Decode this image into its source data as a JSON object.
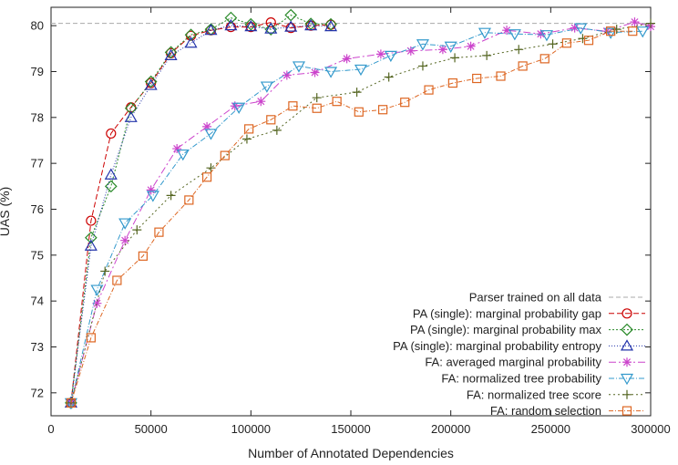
{
  "chart_data": {
    "type": "line",
    "title": "",
    "xlabel": "Number of Annotated Dependencies",
    "ylabel": "UAS (%)",
    "xlim": [
      0,
      300000
    ],
    "ylim": [
      71.5,
      80.4
    ],
    "xticks": [
      0,
      50000,
      100000,
      150000,
      200000,
      250000,
      300000
    ],
    "xtick_labels": [
      "0",
      "50000",
      "100000",
      "150000",
      "200000",
      "250000",
      "300000"
    ],
    "yticks": [
      72,
      73,
      74,
      75,
      76,
      77,
      78,
      79,
      80
    ],
    "ytick_labels": [
      "72",
      "73",
      "74",
      "75",
      "76",
      "77",
      "78",
      "79",
      "80"
    ],
    "grid": false,
    "legend_position": "bottom-right",
    "reference_line": {
      "name": "Parser trained on all data",
      "y": 80.05,
      "color": "#aaaaaa"
    },
    "series": [
      {
        "name": "PA (single): marginal probability gap",
        "color": "#cc0000",
        "marker": "circle",
        "dash": "6,3",
        "x": [
          10000,
          20000,
          30000,
          40000,
          50000,
          60000,
          70000,
          80000,
          90000,
          100000,
          110000,
          120000,
          130000,
          140000
        ],
        "y": [
          71.78,
          75.75,
          77.65,
          78.22,
          78.75,
          79.4,
          79.78,
          79.9,
          79.97,
          79.97,
          80.07,
          79.95,
          80.0,
          80.02
        ]
      },
      {
        "name": "PA (single): marginal probability max",
        "color": "#2a8a2a",
        "marker": "diamond",
        "dash": "2,2",
        "x": [
          10000,
          20000,
          30000,
          40000,
          50000,
          60000,
          70000,
          80000,
          90000,
          100000,
          110000,
          120000,
          130000,
          140000
        ],
        "y": [
          71.78,
          75.38,
          76.5,
          78.2,
          78.78,
          79.42,
          79.8,
          79.92,
          80.17,
          80.03,
          79.92,
          80.23,
          80.04,
          80.03
        ]
      },
      {
        "name": "PA (single): marginal probability entropy",
        "color": "#2233aa",
        "marker": "triangle",
        "dash": "1,2",
        "x": [
          10000,
          20000,
          30000,
          40000,
          50000,
          60000,
          70000,
          80000,
          90000,
          100000,
          110000,
          120000,
          130000,
          140000
        ],
        "y": [
          71.78,
          75.2,
          76.75,
          78.0,
          78.7,
          79.35,
          79.62,
          79.9,
          80.0,
          79.98,
          79.93,
          79.97,
          80.0,
          79.98
        ]
      },
      {
        "name": "FA: averaged marginal probability",
        "color": "#cc44cc",
        "marker": "star",
        "dash": "8,3,2,3",
        "x": [
          10000,
          23000,
          37000,
          50000,
          63000,
          78000,
          92000,
          105000,
          118000,
          132000,
          148000,
          165000,
          180000,
          196000,
          210000,
          228000,
          245000,
          262000,
          278000,
          292000,
          300000
        ],
        "y": [
          71.78,
          73.95,
          75.32,
          76.42,
          77.32,
          77.8,
          78.25,
          78.35,
          78.92,
          78.98,
          79.28,
          79.38,
          79.45,
          79.48,
          79.55,
          79.9,
          79.82,
          79.95,
          79.88,
          80.08,
          79.98
        ]
      },
      {
        "name": "FA: normalized tree probability",
        "color": "#3399cc",
        "marker": "tri_down",
        "dash": "6,2,1,2",
        "x": [
          10000,
          23000,
          37000,
          51000,
          66000,
          80000,
          94000,
          108000,
          124000,
          140000,
          155000,
          170000,
          186000,
          200000,
          217000,
          232000,
          248000,
          265000,
          280000,
          296000
        ],
        "y": [
          71.78,
          74.25,
          75.7,
          76.3,
          77.2,
          77.65,
          78.22,
          78.68,
          79.12,
          79.0,
          79.05,
          79.35,
          79.6,
          79.55,
          79.85,
          79.82,
          79.8,
          79.95,
          79.85,
          79.88
        ]
      },
      {
        "name": "FA: normalized tree score",
        "color": "#556622",
        "marker": "plus",
        "dash": "2,3",
        "x": [
          10000,
          27000,
          43000,
          60000,
          80000,
          98000,
          113000,
          133000,
          153000,
          169000,
          186000,
          202000,
          218000,
          234000,
          251000,
          266000,
          283000,
          300000
        ],
        "y": [
          71.78,
          74.65,
          75.55,
          76.3,
          76.9,
          77.53,
          77.72,
          78.43,
          78.55,
          78.88,
          79.12,
          79.3,
          79.35,
          79.48,
          79.6,
          79.72,
          79.92,
          80.05
        ]
      },
      {
        "name": "FA: random selection",
        "color": "#dd6622",
        "marker": "square",
        "dash": "5,2,1,2",
        "x": [
          10000,
          20000,
          33000,
          46000,
          54000,
          69000,
          78000,
          87000,
          99000,
          110000,
          121000,
          133000,
          143000,
          154000,
          166000,
          177000,
          189000,
          201000,
          213000,
          225000,
          236000,
          247000,
          258000,
          269000,
          280000,
          291000
        ],
        "y": [
          71.78,
          73.2,
          74.45,
          74.98,
          75.5,
          76.2,
          76.7,
          77.17,
          77.75,
          77.95,
          78.25,
          78.2,
          78.35,
          78.12,
          78.17,
          78.33,
          78.6,
          78.75,
          78.85,
          78.9,
          79.12,
          79.28,
          79.62,
          79.68,
          79.88,
          79.88
        ]
      }
    ]
  }
}
